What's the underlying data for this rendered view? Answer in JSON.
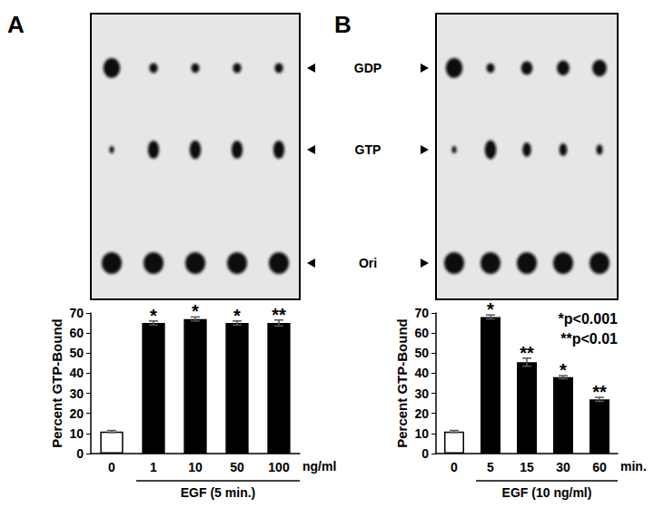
{
  "blot_labels": [
    "GDP",
    "GTP",
    "Ori"
  ],
  "chart_data": [
    {
      "type": "bar",
      "panel": "A",
      "categories": [
        "0",
        "1",
        "10",
        "50",
        "100"
      ],
      "x_unit": "ng/ml",
      "x_group_label": "EGF (5 min.)",
      "y_label": "Percent GTP-Bound",
      "values": [
        11,
        65,
        67,
        65,
        65
      ],
      "errors": [
        0.5,
        1,
        1,
        1,
        1.5
      ],
      "significance": [
        null,
        "*",
        "*",
        "*",
        "**"
      ],
      "colors": [
        "#ffffff",
        "#000000",
        "#000000",
        "#000000",
        "#000000"
      ],
      "ylim": [
        0,
        70
      ],
      "yticks": [
        0,
        10,
        20,
        30,
        40,
        50,
        60,
        70
      ],
      "grid": false,
      "data_labels": false
    },
    {
      "type": "bar",
      "panel": "B",
      "categories": [
        "0",
        "5",
        "15",
        "30",
        "60"
      ],
      "x_unit": "min.",
      "x_group_label": "EGF (10 ng/ml)",
      "y_label": "Percent GTP-Bound",
      "values": [
        11,
        68,
        45.5,
        38,
        27
      ],
      "errors": [
        0.5,
        1,
        2,
        0.8,
        1
      ],
      "significance": [
        null,
        "*",
        "**",
        "*",
        "**"
      ],
      "annotations": [
        "*p<0.001",
        "**p<0.01"
      ],
      "colors": [
        "#ffffff",
        "#000000",
        "#000000",
        "#000000",
        "#000000"
      ],
      "ylim": [
        0,
        70
      ],
      "yticks": [
        0,
        10,
        20,
        30,
        40,
        50,
        60,
        70
      ],
      "grid": false,
      "data_labels": false
    }
  ]
}
